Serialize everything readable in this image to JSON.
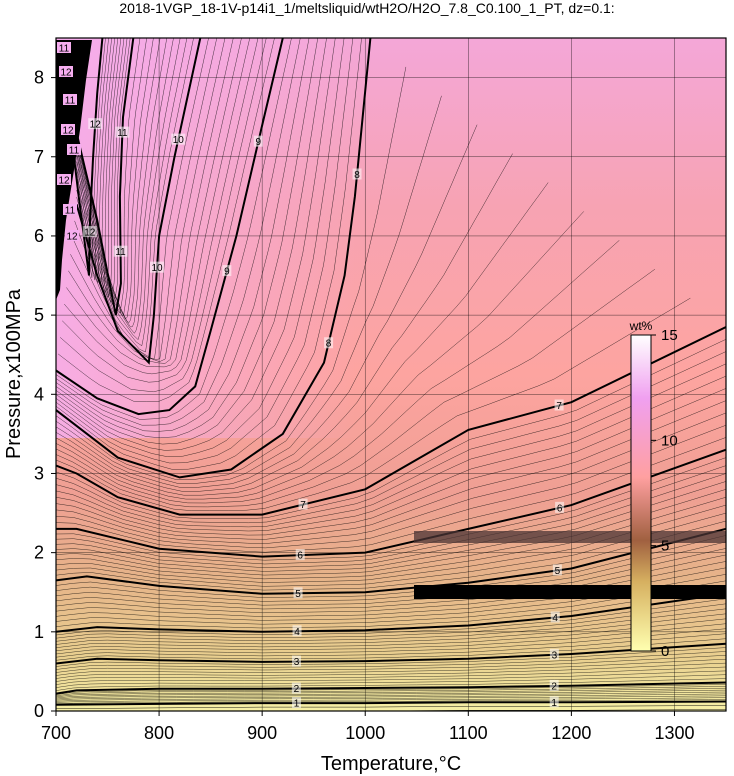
{
  "chart_data": {
    "type": "contour",
    "title": "2018-1VGP_18-1V-p14i1_1/meltsliquid/wtH2O/H2O_7.8_C0.100_1_PT, dz=0.1:",
    "xlabel": "Temperature,°C",
    "ylabel": "Pressure,x100MPa",
    "xlim": [
      700,
      1350
    ],
    "ylim": [
      0,
      8.5
    ],
    "x_ticks": [
      "700",
      "800",
      "900",
      "1000",
      "1100",
      "1200",
      "1300"
    ],
    "y_ticks": [
      "0",
      "1",
      "2",
      "3",
      "4",
      "5",
      "6",
      "7",
      "8"
    ],
    "grid": true,
    "colorbar": {
      "label": "wt%",
      "range": [
        0,
        15
      ],
      "ticks": [
        "0",
        "5",
        "10",
        "15"
      ],
      "colors": [
        "#ffffb0",
        "#d6b060",
        "#a06040",
        "#ffa0a0",
        "#f0a0f0",
        "#ffffff"
      ]
    },
    "contours": [
      {
        "level": "1",
        "points": [
          [
            700,
            0.08
          ],
          [
            800,
            0.09
          ],
          [
            900,
            0.1
          ],
          [
            1000,
            0.1
          ],
          [
            1100,
            0.11
          ],
          [
            1200,
            0.11
          ],
          [
            1350,
            0.12
          ]
        ]
      },
      {
        "level": "2",
        "points": [
          [
            700,
            0.22
          ],
          [
            720,
            0.26
          ],
          [
            800,
            0.28
          ],
          [
            900,
            0.28
          ],
          [
            1000,
            0.29
          ],
          [
            1100,
            0.3
          ],
          [
            1200,
            0.32
          ],
          [
            1350,
            0.36
          ]
        ]
      },
      {
        "level": "3",
        "points": [
          [
            700,
            0.6
          ],
          [
            740,
            0.66
          ],
          [
            800,
            0.64
          ],
          [
            900,
            0.62
          ],
          [
            1000,
            0.63
          ],
          [
            1100,
            0.66
          ],
          [
            1200,
            0.72
          ],
          [
            1350,
            0.85
          ]
        ]
      },
      {
        "level": "4",
        "points": [
          [
            700,
            1.0
          ],
          [
            740,
            1.06
          ],
          [
            800,
            1.03
          ],
          [
            900,
            1.0
          ],
          [
            1000,
            1.02
          ],
          [
            1100,
            1.08
          ],
          [
            1200,
            1.2
          ],
          [
            1350,
            1.48
          ]
        ]
      },
      {
        "level": "5",
        "points": [
          [
            700,
            1.65
          ],
          [
            730,
            1.7
          ],
          [
            800,
            1.58
          ],
          [
            900,
            1.48
          ],
          [
            1000,
            1.5
          ],
          [
            1100,
            1.62
          ],
          [
            1200,
            1.8
          ],
          [
            1350,
            2.3
          ]
        ]
      },
      {
        "level": "6",
        "points": [
          [
            700,
            2.3
          ],
          [
            720,
            2.3
          ],
          [
            800,
            2.05
          ],
          [
            900,
            1.95
          ],
          [
            1000,
            2.0
          ],
          [
            1100,
            2.3
          ],
          [
            1200,
            2.6
          ],
          [
            1350,
            3.3
          ]
        ]
      },
      {
        "level": "7",
        "points": [
          [
            700,
            3.1
          ],
          [
            720,
            3.0
          ],
          [
            760,
            2.7
          ],
          [
            820,
            2.48
          ],
          [
            900,
            2.48
          ],
          [
            1000,
            2.8
          ],
          [
            1100,
            3.55
          ],
          [
            1200,
            3.9
          ],
          [
            1350,
            4.85
          ]
        ]
      },
      {
        "level": "8",
        "points": [
          [
            700,
            3.8
          ],
          [
            760,
            3.2
          ],
          [
            820,
            2.95
          ],
          [
            870,
            3.05
          ],
          [
            920,
            3.5
          ],
          [
            960,
            4.4
          ],
          [
            980,
            5.5
          ],
          [
            990,
            6.5
          ],
          [
            1005,
            8.5
          ]
        ]
      },
      {
        "level": "9",
        "points": [
          [
            700,
            4.3
          ],
          [
            740,
            3.95
          ],
          [
            780,
            3.75
          ],
          [
            810,
            3.8
          ],
          [
            835,
            4.1
          ],
          [
            850,
            4.8
          ],
          [
            875,
            6.0
          ],
          [
            900,
            7.4
          ],
          [
            920,
            8.5
          ]
        ]
      },
      {
        "level": "10",
        "points": [
          [
            720,
            6.4
          ],
          [
            740,
            5.5
          ],
          [
            760,
            4.8
          ],
          [
            790,
            4.4
          ],
          [
            795,
            5.0
          ],
          [
            800,
            6.0
          ],
          [
            815,
            7.0
          ],
          [
            840,
            8.5
          ]
        ]
      },
      {
        "level": "11",
        "points": [
          [
            720,
            7.3
          ],
          [
            740,
            6.2
          ],
          [
            758,
            5.0
          ],
          [
            763,
            5.4
          ],
          [
            762,
            6.5
          ],
          [
            765,
            7.5
          ],
          [
            775,
            8.5
          ]
        ]
      },
      {
        "level": "12",
        "points": [
          [
            710,
            7.8
          ],
          [
            722,
            6.5
          ],
          [
            732,
            5.5
          ],
          [
            733,
            6.2
          ],
          [
            736,
            7.0
          ],
          [
            740,
            7.8
          ],
          [
            745,
            8.5
          ]
        ]
      }
    ]
  }
}
